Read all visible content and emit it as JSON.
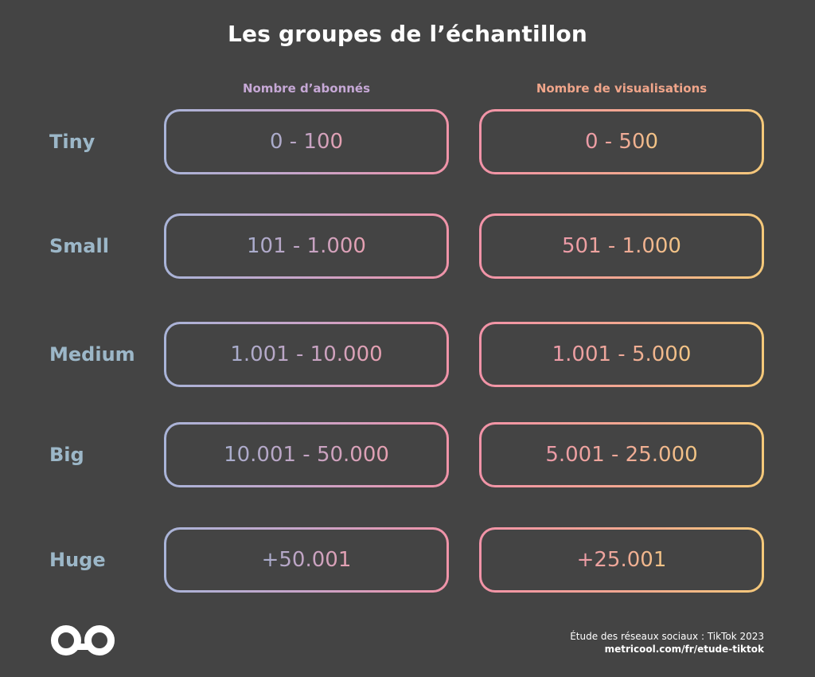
{
  "title": "Les groupes de l’échantillon",
  "columns": {
    "followers": "Nombre d’abonnés",
    "views": "Nombre de visualisations"
  },
  "rows": [
    {
      "label": "Tiny",
      "followers": "0 - 100",
      "views": "0 - 500"
    },
    {
      "label": "Small",
      "followers": "101 - 1.000",
      "views": "501 - 1.000"
    },
    {
      "label": "Medium",
      "followers": "1.001 - 10.000",
      "views": "1.001 - 5.000"
    },
    {
      "label": "Big",
      "followers": "10.001 - 50.000",
      "views": "5.001 - 25.000"
    },
    {
      "label": "Huge",
      "followers": "+50.001",
      "views": "+25.001"
    }
  ],
  "footer": {
    "study": "Étude des réseaux sociaux : TikTok 2023",
    "url": "metricool.com/fr/etude-tiktok"
  },
  "logo": {
    "icon": "metricool-infinity-icon"
  },
  "colors": {
    "background": "#444444",
    "title": "#ffffff",
    "row_label": "#9cb7c8",
    "followers_header": "#c6a8d6",
    "views_header": "#f0a58a",
    "gradient_blue": "#a9b4d8",
    "gradient_pink": "#f093a8",
    "gradient_yellow": "#f5c97a"
  }
}
